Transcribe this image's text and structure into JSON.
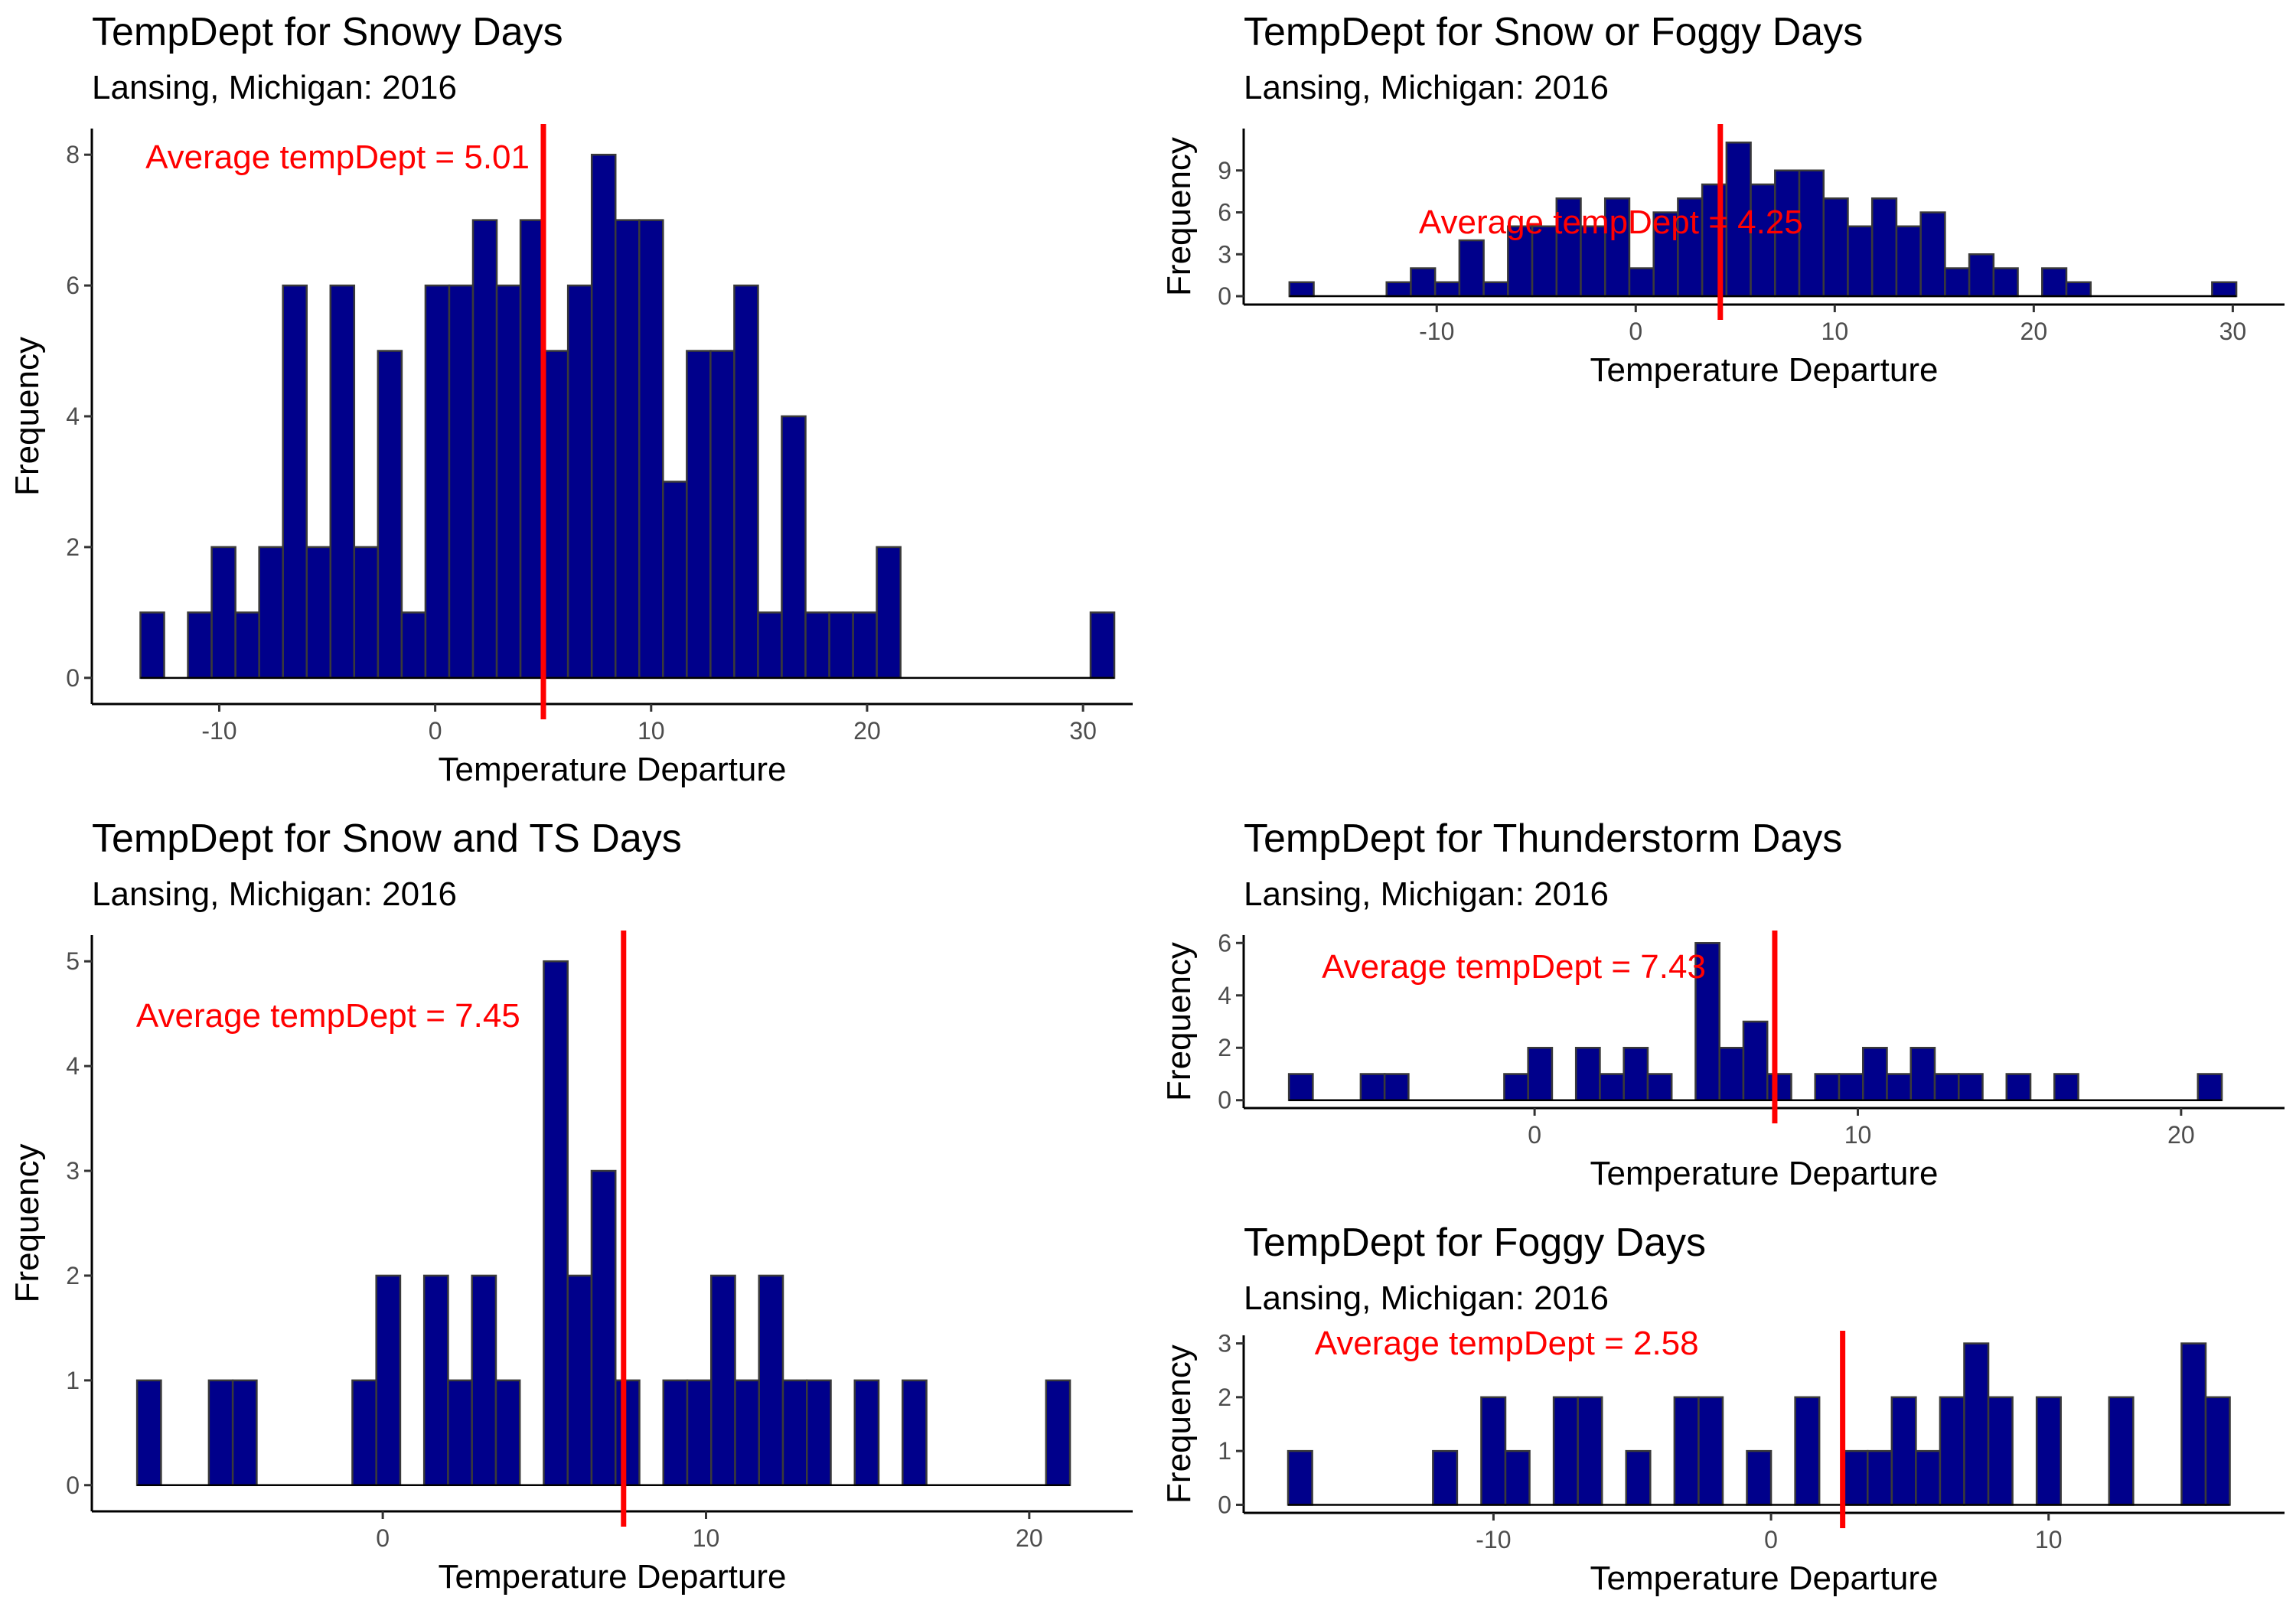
{
  "chart_data": [
    {
      "type": "bar",
      "title": "TempDept for Snowy Days",
      "subtitle": "Lansing, Michigan: 2016",
      "xlabel": "Temperature Departure",
      "ylabel": "Frequency",
      "annotation": "Average tempDept = 5.01",
      "mean": 5.01,
      "bin_width": 1.1,
      "bins_start": -13.65,
      "counts": [
        1,
        0,
        1,
        2,
        1,
        2,
        6,
        2,
        6,
        2,
        5,
        1,
        6,
        6,
        7,
        6,
        7,
        5,
        6,
        8,
        7,
        7,
        3,
        5,
        5,
        6,
        1,
        4,
        1,
        1,
        1,
        2,
        0,
        0,
        0,
        0,
        0,
        0,
        0,
        0,
        1
      ],
      "xlim": [
        -15.9,
        32.3
      ],
      "ylim": [
        -0.4,
        8.4
      ],
      "xticks": [
        -10,
        0,
        10,
        20,
        30
      ],
      "xtick_labels": [
        "-10",
        "0",
        "10",
        "20",
        "30"
      ],
      "yticks": [
        0,
        2,
        4,
        6,
        8
      ],
      "ytick_labels": [
        "0",
        "2",
        "4",
        "6",
        "8"
      ]
    },
    {
      "type": "bar",
      "title": "TempDept for Snow or Foggy Days",
      "subtitle": "Lansing, Michigan: 2016",
      "xlabel": "Temperature Departure",
      "ylabel": "Frequency",
      "annotation": "Average tempDept = 4.25",
      "mean": 4.25,
      "bin_width": 1.22,
      "bins_start": -17.4,
      "counts": [
        1,
        0,
        0,
        0,
        1,
        2,
        1,
        4,
        1,
        5,
        5,
        7,
        5,
        7,
        2,
        6,
        7,
        8,
        11,
        8,
        9,
        9,
        7,
        5,
        7,
        5,
        6,
        2,
        3,
        2,
        0,
        2,
        1,
        0,
        0,
        0,
        0,
        0,
        1
      ],
      "xlim": [
        -19.7,
        32.6
      ],
      "ylim": [
        -0.6,
        12.0
      ],
      "xticks": [
        -10,
        0,
        10,
        20,
        30
      ],
      "xtick_labels": [
        "-10",
        "0",
        "10",
        "20",
        "30"
      ],
      "yticks": [
        0,
        3,
        6,
        9
      ],
      "ytick_labels": [
        "0",
        "3",
        "6",
        "9"
      ]
    },
    {
      "type": "bar",
      "title": "TempDept for Snow and TS Days",
      "subtitle": "Lansing, Michigan: 2016",
      "xlabel": "Temperature Departure",
      "ylabel": "Frequency",
      "annotation": "Average tempDept = 7.45",
      "mean": 7.45,
      "bin_width": 0.74,
      "bins_start": -7.6,
      "counts": [
        1,
        0,
        0,
        1,
        1,
        0,
        0,
        0,
        0,
        1,
        2,
        0,
        2,
        1,
        2,
        1,
        0,
        5,
        2,
        3,
        1,
        0,
        1,
        1,
        2,
        1,
        2,
        1,
        1,
        0,
        1,
        0,
        1,
        0,
        0,
        0,
        0,
        0,
        1
      ],
      "xlim": [
        -9.0,
        23.2
      ],
      "ylim": [
        -0.25,
        5.25
      ],
      "xticks": [
        0,
        10,
        20
      ],
      "xtick_labels": [
        "0",
        "10",
        "20"
      ],
      "yticks": [
        0,
        1,
        2,
        3,
        4,
        5
      ],
      "ytick_labels": [
        "0",
        "1",
        "2",
        "3",
        "4",
        "5"
      ]
    },
    {
      "type": "bar",
      "title": "TempDept for Thunderstorm Days",
      "subtitle": "Lansing, Michigan: 2016",
      "xlabel": "Temperature Departure",
      "ylabel": "Frequency",
      "annotation": "Average tempDept = 7.43",
      "mean": 7.43,
      "bin_width": 0.74,
      "bins_start": -7.6,
      "counts": [
        1,
        0,
        0,
        1,
        1,
        0,
        0,
        0,
        0,
        1,
        2,
        0,
        2,
        1,
        2,
        1,
        0,
        6,
        2,
        3,
        1,
        0,
        1,
        1,
        2,
        1,
        2,
        1,
        1,
        0,
        1,
        0,
        1,
        0,
        0,
        0,
        0,
        0,
        1
      ],
      "xlim": [
        -9.0,
        23.2
      ],
      "ylim": [
        -0.3,
        6.3
      ],
      "xticks": [
        0,
        10,
        20
      ],
      "xtick_labels": [
        "0",
        "10",
        "20"
      ],
      "yticks": [
        0,
        2,
        4,
        6
      ],
      "ytick_labels": [
        "0",
        "2",
        "4",
        "6"
      ]
    },
    {
      "type": "bar",
      "title": "TempDept for Foggy Days",
      "subtitle": "Lansing, Michigan: 2016",
      "xlabel": "Temperature Departure",
      "ylabel": "Frequency",
      "annotation": "Average tempDept = 2.58",
      "mean": 2.58,
      "bin_width": 0.87,
      "bins_start": -17.4,
      "counts": [
        1,
        0,
        0,
        0,
        0,
        0,
        1,
        0,
        2,
        1,
        0,
        2,
        2,
        0,
        1,
        0,
        2,
        2,
        0,
        1,
        0,
        2,
        0,
        1,
        1,
        2,
        1,
        2,
        3,
        2,
        0,
        2,
        0,
        0,
        2,
        0,
        0,
        3,
        2
      ],
      "xlim": [
        -19.0,
        18.5
      ],
      "ylim": [
        -0.15,
        3.15
      ],
      "xticks": [
        -10,
        0,
        10
      ],
      "xtick_labels": [
        "-10",
        "0",
        "10"
      ],
      "yticks": [
        0,
        1,
        2,
        3
      ],
      "ytick_labels": [
        "0",
        "1",
        "2",
        "3"
      ]
    }
  ]
}
